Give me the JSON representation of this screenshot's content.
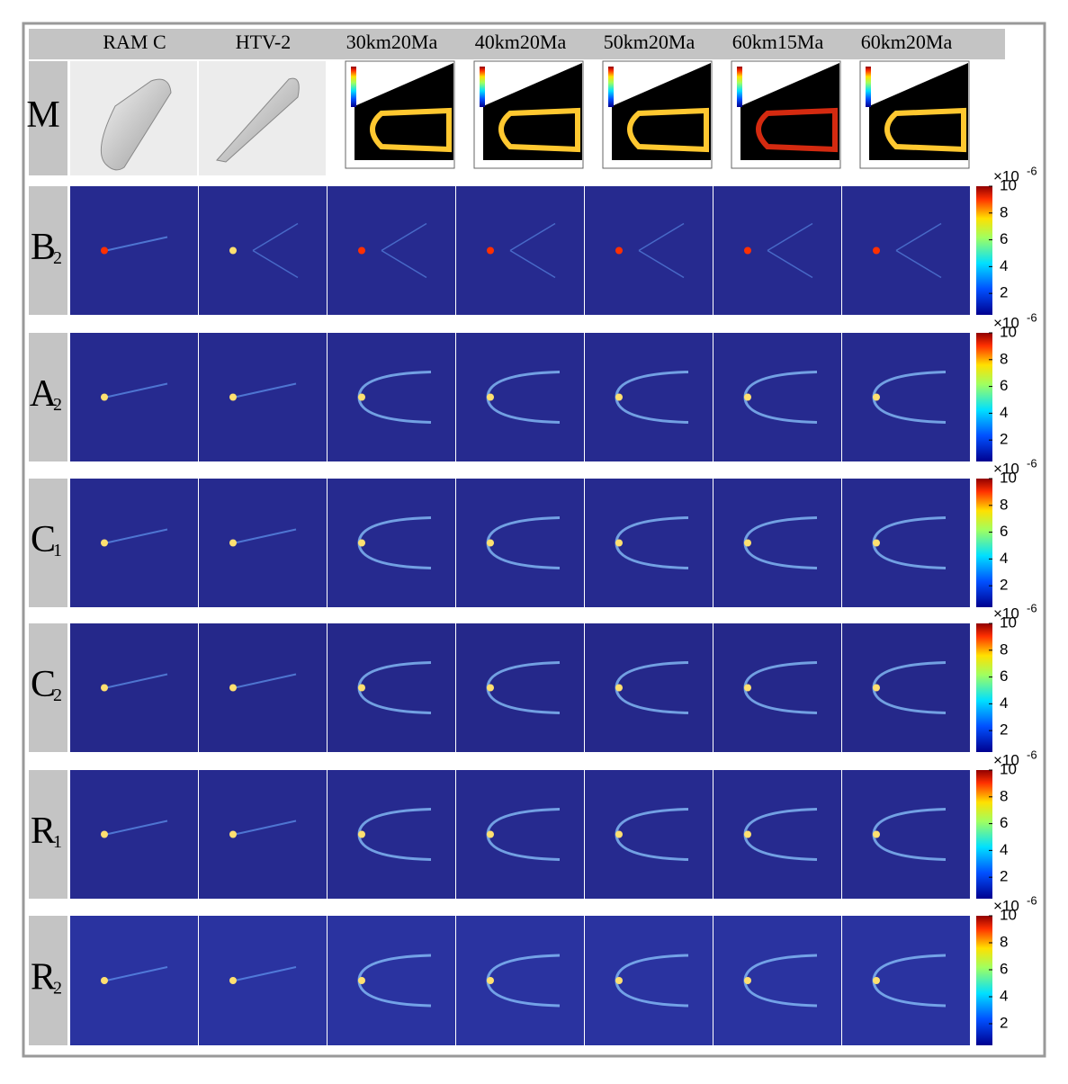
{
  "columns": [
    "RAM C",
    "HTV-2",
    "30km20Ma",
    "40km20Ma",
    "50km20Ma",
    "60km15Ma",
    "60km20Ma"
  ],
  "rows": [
    {
      "label": "M"
    },
    {
      "label": "B",
      "subscript": "2"
    },
    {
      "label": "A",
      "subscript": "2"
    },
    {
      "label": "C",
      "subscript": "1"
    },
    {
      "label": "C",
      "subscript": "2"
    },
    {
      "label": "R",
      "subscript": "1"
    },
    {
      "label": "R",
      "subscript": "2"
    }
  ],
  "colorbar": {
    "base": "×10",
    "exponent": "-6",
    "clim": [
      0.4,
      10
    ],
    "ticks": [
      2,
      4,
      6,
      8,
      10
    ]
  }
}
